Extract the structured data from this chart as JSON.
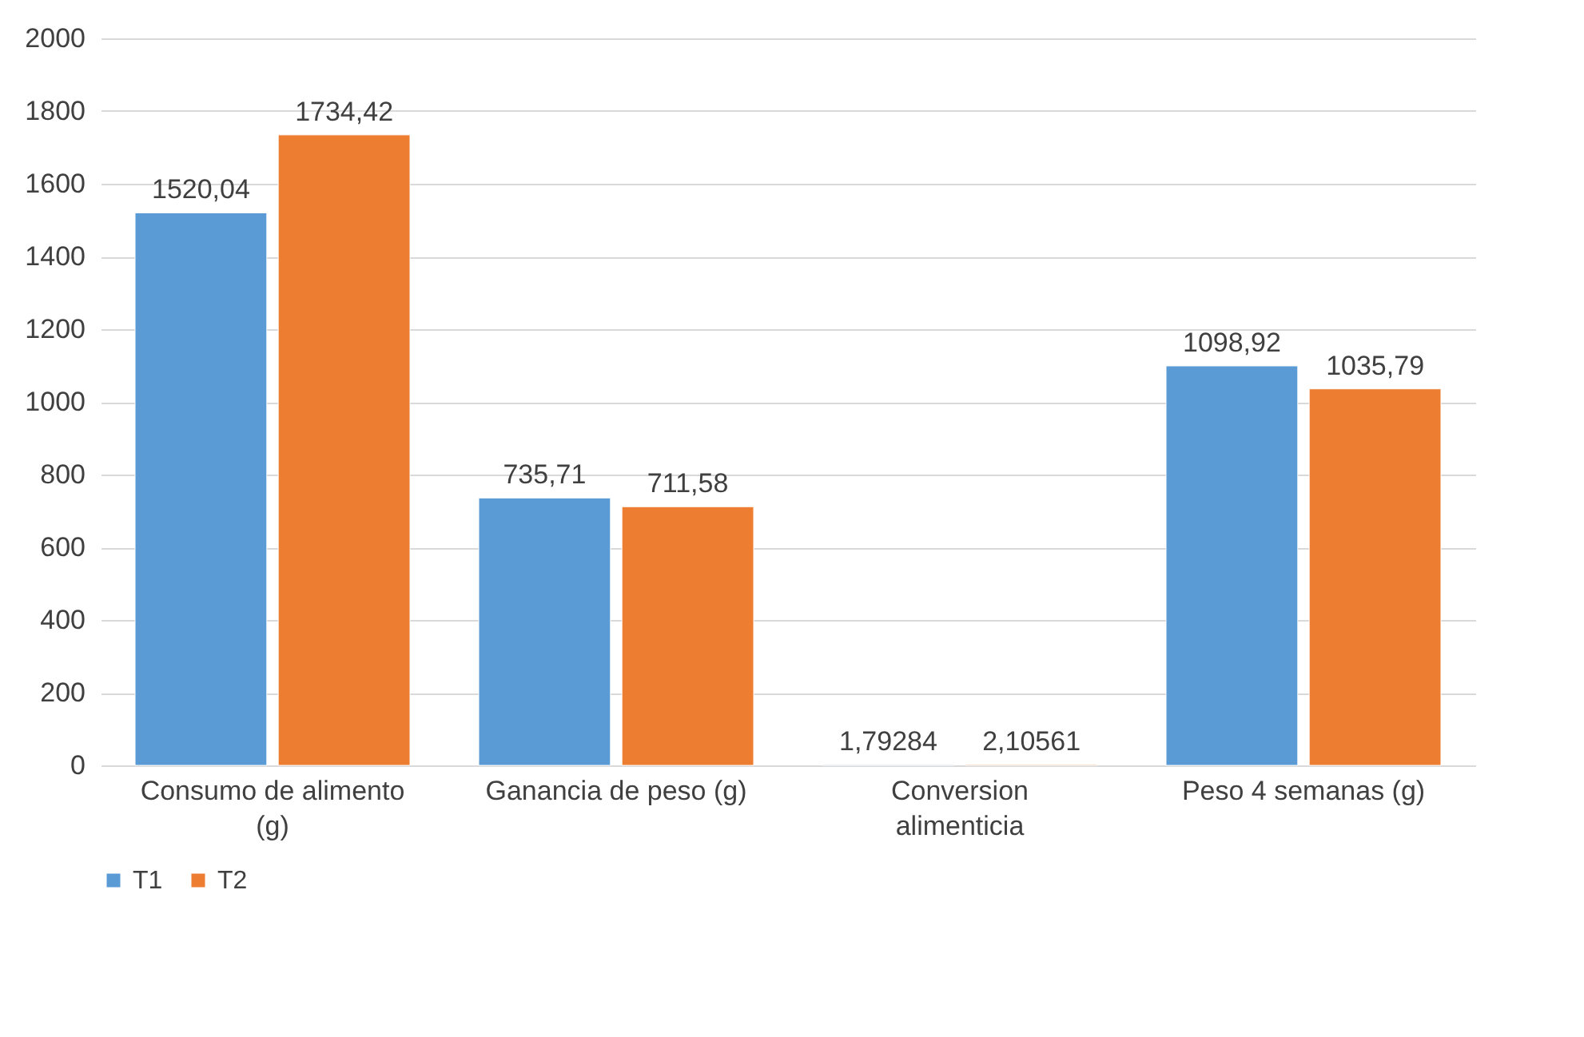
{
  "chart_data": {
    "type": "bar",
    "categories": [
      "Consumo de alimento (g)",
      "Ganancia de peso (g)",
      "Conversion alimenticia",
      "Peso 4 semanas (g)"
    ],
    "series": [
      {
        "name": "T1",
        "color": "#5b9bd5",
        "values": [
          1520.04,
          735.71,
          1.79284,
          1098.92
        ],
        "value_labels": [
          "1520,04",
          "735,71",
          "1,79284",
          "1098,92"
        ]
      },
      {
        "name": "T2",
        "color": "#ed7d31",
        "values": [
          1734.42,
          711.58,
          2.10561,
          1035.79
        ],
        "value_labels": [
          "1734,42",
          "711,58",
          "2,10561",
          "1035,79"
        ]
      }
    ],
    "ylim": [
      0,
      2000
    ],
    "yticks": [
      0,
      200,
      400,
      600,
      800,
      1000,
      1200,
      1400,
      1600,
      1800,
      2000
    ],
    "grid": "y",
    "legend": "bottom"
  }
}
